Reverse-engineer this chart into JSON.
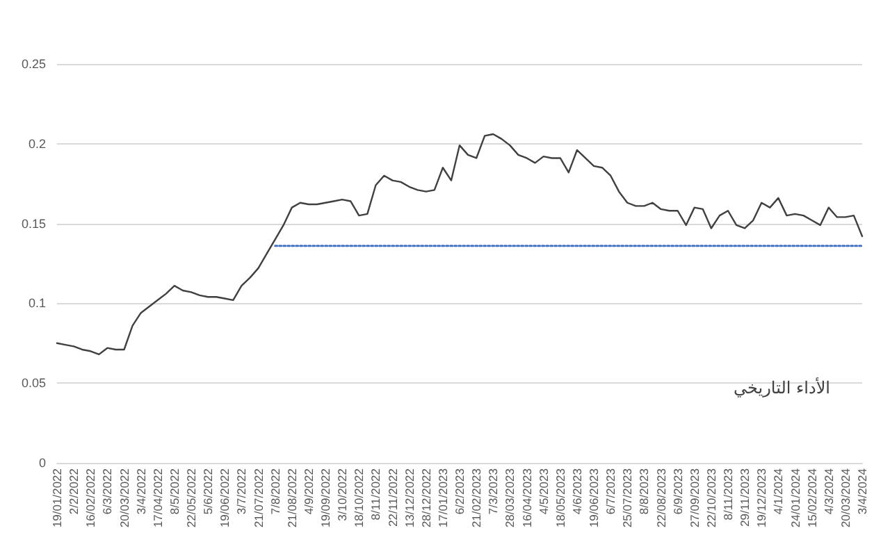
{
  "chart_data": {
    "type": "line",
    "title": "الأداء التاريخي",
    "categories": [
      "19/01/2022",
      null,
      "2/2/2022",
      null,
      "16/02/2022",
      null,
      "6/3/2022",
      null,
      "20/03/2022",
      null,
      "3/4/2022",
      null,
      "17/04/2022",
      null,
      "8/5/2022",
      null,
      "22/05/2022",
      null,
      "5/6/2022",
      null,
      "19/06/2022",
      null,
      "3/7/2022",
      null,
      "21/07/2022",
      null,
      "7/8/2022",
      null,
      "21/08/2022",
      null,
      "4/9/2022",
      null,
      "19/09/2022",
      null,
      "3/10/2022",
      null,
      "18/10/2022",
      null,
      "8/11/2022",
      null,
      "22/11/2022",
      null,
      "13/12/2022",
      null,
      "28/12/2022",
      null,
      "17/01/2023",
      null,
      "6/2/2023",
      null,
      "21/02/2023",
      null,
      "7/3/2023",
      null,
      "28/03/2023",
      null,
      "16/04/2023",
      null,
      "4/5/2023",
      null,
      "18/05/2023",
      null,
      "4/6/2023",
      null,
      "19/06/2023",
      null,
      "6/7/2023",
      null,
      "25/07/2023",
      null,
      "8/8/2023",
      null,
      "22/08/2023",
      null,
      "6/9/2023",
      null,
      "27/09/2023",
      null,
      "22/10/2023",
      null,
      "8/11/2023",
      null,
      "29/11/2023",
      null,
      "19/12/2023",
      null,
      "4/1/2024",
      null,
      "24/01/2024",
      null,
      "15/02/2024",
      null,
      "4/3/2024",
      null,
      "20/03/2024",
      null,
      "3/4/2024"
    ],
    "series": [
      {
        "color": "#404040",
        "values": [
          0.075,
          0.074,
          0.073,
          0.071,
          0.07,
          0.068,
          0.072,
          0.071,
          0.071,
          0.086,
          0.094,
          0.098,
          0.102,
          0.106,
          0.111,
          0.108,
          0.107,
          0.105,
          0.104,
          0.104,
          0.103,
          0.102,
          0.111,
          0.116,
          0.122,
          0.131,
          0.14,
          0.149,
          0.16,
          0.163,
          0.162,
          0.162,
          0.163,
          0.164,
          0.165,
          0.164,
          0.155,
          0.156,
          0.174,
          0.18,
          0.177,
          0.176,
          0.173,
          0.171,
          0.17,
          0.171,
          0.185,
          0.177,
          0.199,
          0.193,
          0.191,
          0.205,
          0.206,
          0.203,
          0.199,
          0.193,
          0.191,
          0.188,
          0.192,
          0.191,
          0.191,
          0.182,
          0.196,
          0.191,
          0.186,
          0.185,
          0.18,
          0.17,
          0.163,
          0.161,
          0.161,
          0.163,
          0.159,
          0.158,
          0.158,
          0.149,
          0.16,
          0.159,
          0.147,
          0.155,
          0.158,
          0.149,
          0.147,
          0.152,
          0.163,
          0.16,
          0.166,
          0.155,
          0.156,
          0.155,
          0.152,
          0.149,
          0.16,
          0.154,
          0.154,
          0.155,
          0.142
        ]
      },
      {
        "color": "#4472c4",
        "line_style": "dotted",
        "x": [
          "7/8/2022",
          "3/4/2024"
        ],
        "values": [
          0.136,
          0.136
        ]
      }
    ],
    "ylim": [
      0,
      0.25
    ],
    "yticks": [
      0,
      0.05,
      0.1,
      0.15,
      0.2,
      0.25
    ],
    "grid": "y",
    "marker": "none",
    "line_style": "solid"
  }
}
